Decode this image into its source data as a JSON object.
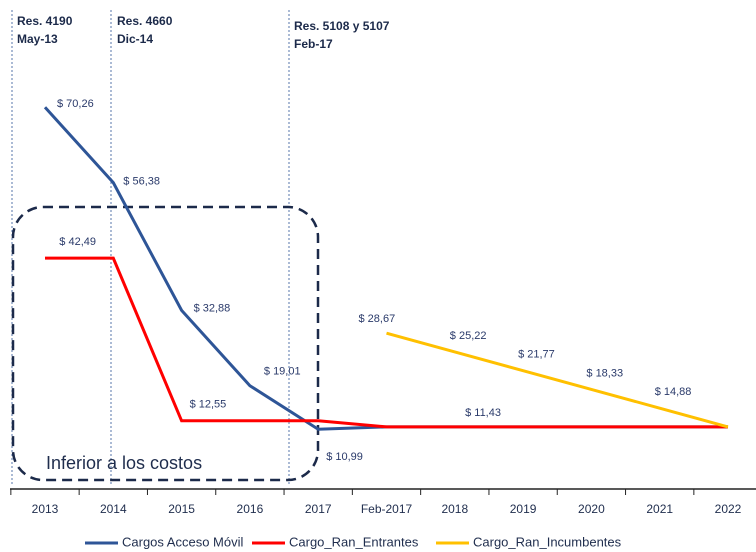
{
  "chart_data": {
    "type": "line",
    "categories": [
      "2013",
      "2014",
      "2015",
      "2016",
      "2017",
      "Feb-2017",
      "2018",
      "2019",
      "2020",
      "2021",
      "2022"
    ],
    "series": [
      {
        "name": "Cargos Acceso Móvil",
        "color": "#2e5597",
        "values": [
          70.26,
          56.38,
          32.88,
          19.01,
          10.99,
          11.43,
          11.43,
          11.43,
          11.43,
          11.43,
          11.43
        ],
        "value_labels": [
          "$ 70,26",
          "$ 56,38",
          "$ 32,88",
          "$ 19,01",
          "$ 10,99",
          null,
          null,
          null,
          null,
          null,
          null
        ]
      },
      {
        "name": "Cargo_Ran_Entrantes",
        "color": "#ff0000",
        "values": [
          42.49,
          42.49,
          12.55,
          12.55,
          12.55,
          11.43,
          11.43,
          11.43,
          11.43,
          11.43,
          11.43
        ],
        "value_labels": [
          null,
          "$ 42,49",
          "$ 12,55",
          null,
          null,
          null,
          null,
          "$ 11,43",
          null,
          null,
          null
        ]
      },
      {
        "name": "Cargo_Ran_Incumbentes",
        "color": "#ffc000",
        "values": [
          null,
          null,
          null,
          null,
          null,
          28.67,
          25.22,
          21.77,
          18.33,
          14.88,
          11.43
        ],
        "value_labels": [
          null,
          null,
          null,
          null,
          null,
          "$ 28,67",
          "$ 25,22",
          "$ 21,77",
          "$ 18,33",
          "$ 14,88",
          null
        ]
      }
    ],
    "ylim": [
      0,
      75
    ],
    "annotations": [
      {
        "line1": "Res. 4190",
        "line2": "May-13"
      },
      {
        "line1": "Res. 4660",
        "line2": "Dic-14"
      },
      {
        "line1": "Res. 5108 y 5107",
        "line2": "Feb-17"
      }
    ],
    "box_text": "Inferior a los costos"
  }
}
